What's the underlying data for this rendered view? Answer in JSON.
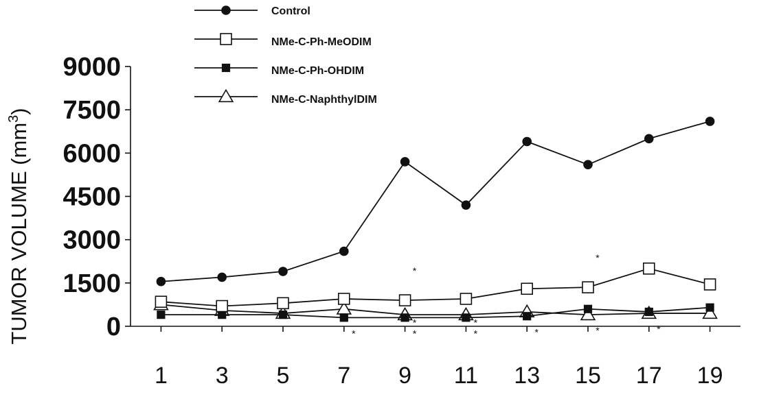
{
  "chart_data": {
    "type": "line",
    "title": "",
    "xlabel": "",
    "ylabel": "TUMOR VOLUME (mm",
    "ylabel_superscript": "3",
    "ylabel_close": ")",
    "x": [
      1,
      3,
      5,
      7,
      9,
      11,
      13,
      15,
      17,
      19
    ],
    "x_tick_labels": [
      "1",
      "3",
      "5",
      "7",
      "9",
      "11",
      "13",
      "15",
      "17",
      "19"
    ],
    "y_ticks": [
      0,
      1500,
      3000,
      4500,
      6000,
      7500,
      9000
    ],
    "y_tick_labels": [
      "0",
      "1500",
      "3000",
      "4500",
      "6000",
      "7500",
      "9000"
    ],
    "ylim": [
      0,
      9000
    ],
    "xlim": [
      0,
      20
    ],
    "grid": false,
    "legend_position": "top-left",
    "series": [
      {
        "name": "Control",
        "marker": "filled-circle",
        "values": [
          1550,
          1700,
          1900,
          2600,
          5700,
          4200,
          6400,
          5600,
          6500,
          7100
        ]
      },
      {
        "name": "NMe-C-Ph-MeODIM",
        "marker": "open-square",
        "values": [
          850,
          700,
          800,
          950,
          900,
          950,
          1300,
          1350,
          2000,
          1450
        ]
      },
      {
        "name": "NMe-C-Ph-OHDIM",
        "marker": "filled-square",
        "values": [
          400,
          400,
          400,
          300,
          300,
          300,
          350,
          600,
          500,
          650
        ]
      },
      {
        "name": "NMe-C-NaphthylDIM",
        "marker": "open-triangle",
        "values": [
          750,
          550,
          450,
          600,
          400,
          400,
          500,
          400,
          450,
          450
        ]
      }
    ],
    "significance_marker": "*"
  }
}
